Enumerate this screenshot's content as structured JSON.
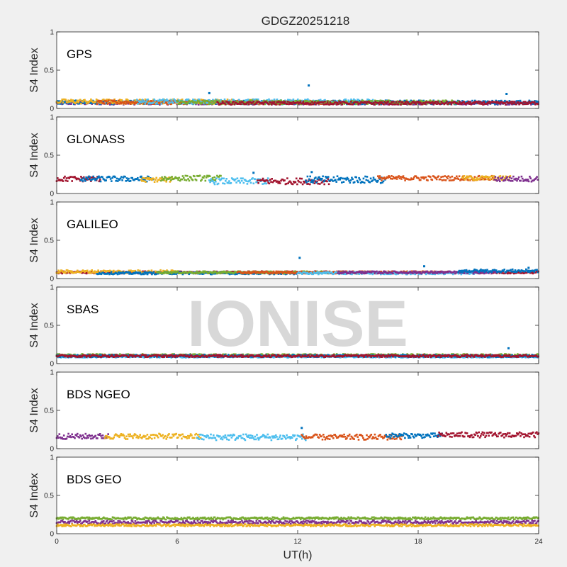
{
  "chart_data": {
    "type": "scatter",
    "title": "GDGZ20251218",
    "xlabel": "UT(h)",
    "ylabel": "S4 Index",
    "xlim": [
      0,
      24
    ],
    "ylim": [
      0,
      1
    ],
    "xticks": [
      "0",
      "6",
      "12",
      "18",
      "24"
    ],
    "yticks": [
      "0",
      "0.5",
      "1"
    ],
    "watermark": "IONISE",
    "colors": [
      "#0072bd",
      "#d95319",
      "#edb120",
      "#7e2f8e",
      "#77ac30",
      "#4dbeee",
      "#a2142f"
    ],
    "panels": [
      {
        "name": "GPS",
        "segments": [
          {
            "color_index": 3,
            "x": [
              0,
              24
            ],
            "y_mean": 0.07,
            "noise": 0.02
          },
          {
            "color_index": 0,
            "x": [
              0,
              24
            ],
            "y_mean": 0.08,
            "noise": 0.025
          },
          {
            "color_index": 2,
            "x": [
              0,
              10
            ],
            "y_mean": 0.09,
            "noise": 0.03
          },
          {
            "color_index": 1,
            "x": [
              2,
              14
            ],
            "y_mean": 0.08,
            "noise": 0.025
          },
          {
            "color_index": 5,
            "x": [
              4,
              16
            ],
            "y_mean": 0.09,
            "noise": 0.03
          },
          {
            "color_index": 4,
            "x": [
              6,
              20
            ],
            "y_mean": 0.08,
            "noise": 0.025
          },
          {
            "color_index": 6,
            "x": [
              8,
              24
            ],
            "y_mean": 0.07,
            "noise": 0.02
          }
        ],
        "outliers": [
          {
            "x": 12.55,
            "y": 0.3
          },
          {
            "x": 7.6,
            "y": 0.2
          },
          {
            "x": 22.4,
            "y": 0.19
          }
        ]
      },
      {
        "name": "GLONASS",
        "segments": [
          {
            "color_index": 6,
            "x": [
              0,
              2.2
            ],
            "y_mean": 0.19,
            "noise": 0.035
          },
          {
            "color_index": 0,
            "x": [
              1.2,
              4.8
            ],
            "y_mean": 0.19,
            "noise": 0.035
          },
          {
            "color_index": 2,
            "x": [
              4.2,
              5.8
            ],
            "y_mean": 0.18,
            "noise": 0.03
          },
          {
            "color_index": 4,
            "x": [
              5.2,
              8.2
            ],
            "y_mean": 0.2,
            "noise": 0.035
          },
          {
            "color_index": 5,
            "x": [
              7.6,
              10.6
            ],
            "y_mean": 0.16,
            "noise": 0.04
          },
          {
            "color_index": 6,
            "x": [
              10,
              13.6
            ],
            "y_mean": 0.16,
            "noise": 0.04
          },
          {
            "color_index": 0,
            "x": [
              12.4,
              16.4
            ],
            "y_mean": 0.18,
            "noise": 0.045
          },
          {
            "color_index": 1,
            "x": [
              16,
              21.8
            ],
            "y_mean": 0.2,
            "noise": 0.03
          },
          {
            "color_index": 2,
            "x": [
              20.2,
              22.6
            ],
            "y_mean": 0.2,
            "noise": 0.03
          },
          {
            "color_index": 3,
            "x": [
              21.8,
              24
            ],
            "y_mean": 0.19,
            "noise": 0.035
          }
        ],
        "outliers": [
          {
            "x": 12.7,
            "y": 0.28
          },
          {
            "x": 9.8,
            "y": 0.27
          }
        ]
      },
      {
        "name": "GALILEO",
        "segments": [
          {
            "color_index": 6,
            "x": [
              0,
              24
            ],
            "y_mean": 0.08,
            "noise": 0.015
          },
          {
            "color_index": 2,
            "x": [
              0,
              6
            ],
            "y_mean": 0.09,
            "noise": 0.02
          },
          {
            "color_index": 0,
            "x": [
              2,
              12
            ],
            "y_mean": 0.07,
            "noise": 0.015
          },
          {
            "color_index": 4,
            "x": [
              5,
              15
            ],
            "y_mean": 0.08,
            "noise": 0.015
          },
          {
            "color_index": 1,
            "x": [
              9,
              19
            ],
            "y_mean": 0.08,
            "noise": 0.015
          },
          {
            "color_index": 5,
            "x": [
              12,
              21
            ],
            "y_mean": 0.07,
            "noise": 0.015
          },
          {
            "color_index": 3,
            "x": [
              14,
              22
            ],
            "y_mean": 0.08,
            "noise": 0.015
          },
          {
            "color_index": 0,
            "x": [
              20,
              24
            ],
            "y_mean": 0.1,
            "noise": 0.02
          }
        ],
        "outliers": [
          {
            "x": 12.1,
            "y": 0.27
          },
          {
            "x": 18.3,
            "y": 0.16
          },
          {
            "x": 23.5,
            "y": 0.14
          }
        ]
      },
      {
        "name": "SBAS",
        "segments": [
          {
            "color_index": 4,
            "x": [
              0,
              24
            ],
            "y_mean": 0.11,
            "noise": 0.015
          },
          {
            "color_index": 5,
            "x": [
              0,
              24
            ],
            "y_mean": 0.09,
            "noise": 0.012
          },
          {
            "color_index": 0,
            "x": [
              0,
              24
            ],
            "y_mean": 0.1,
            "noise": 0.015
          },
          {
            "color_index": 6,
            "x": [
              0,
              24
            ],
            "y_mean": 0.1,
            "noise": 0.015
          }
        ],
        "outliers": [
          {
            "x": 22.5,
            "y": 0.2
          }
        ]
      },
      {
        "name": "BDS NGEO",
        "segments": [
          {
            "color_index": 3,
            "x": [
              0,
              2.6
            ],
            "y_mean": 0.16,
            "noise": 0.035
          },
          {
            "color_index": 2,
            "x": [
              2.4,
              7.2
            ],
            "y_mean": 0.16,
            "noise": 0.035
          },
          {
            "color_index": 5,
            "x": [
              7,
              12.4
            ],
            "y_mean": 0.15,
            "noise": 0.04
          },
          {
            "color_index": 1,
            "x": [
              12.2,
              17.2
            ],
            "y_mean": 0.15,
            "noise": 0.035
          },
          {
            "color_index": 0,
            "x": [
              16.4,
              19.2
            ],
            "y_mean": 0.17,
            "noise": 0.03
          },
          {
            "color_index": 6,
            "x": [
              19,
              24
            ],
            "y_mean": 0.18,
            "noise": 0.035
          }
        ],
        "outliers": [
          {
            "x": 12.2,
            "y": 0.27
          }
        ]
      },
      {
        "name": "BDS GEO",
        "segments": [
          {
            "color_index": 4,
            "x": [
              0,
              24
            ],
            "y_mean": 0.2,
            "noise": 0.015
          },
          {
            "color_index": 3,
            "x": [
              0,
              24
            ],
            "y_mean": 0.15,
            "noise": 0.02
          },
          {
            "color_index": 2,
            "x": [
              0,
              24
            ],
            "y_mean": 0.11,
            "noise": 0.015
          }
        ],
        "outliers": []
      }
    ]
  }
}
